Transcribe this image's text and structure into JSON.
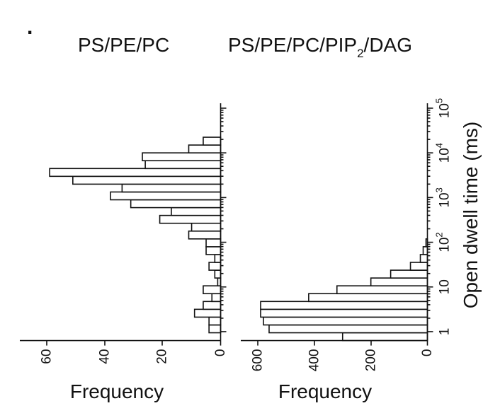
{
  "panel_marker": ".",
  "chart_data": [
    {
      "type": "bar",
      "orientation": "horizontal",
      "title": "PS/PE/PC",
      "xlabel": "Frequency",
      "xlim": [
        70,
        0
      ],
      "xticks": [
        "60",
        "40",
        "20",
        "0"
      ],
      "y_scale": "log",
      "bins_log10_ms": [
        -0.2,
        -0.025,
        0.15,
        0.325,
        0.5,
        0.675,
        0.85,
        1.025,
        1.2,
        1.375,
        1.55,
        1.725,
        1.9,
        2.075,
        2.25,
        2.425,
        2.6,
        2.775,
        2.95,
        3.125,
        3.3,
        3.475,
        3.65,
        3.825,
        4.0,
        4.175,
        4.35,
        4.525,
        4.7,
        4.875
      ],
      "values": [
        0,
        4,
        4,
        9,
        6,
        3,
        6,
        1,
        2,
        4,
        2,
        5,
        5,
        11,
        10,
        21,
        17,
        31,
        38,
        34,
        51,
        59,
        26,
        27,
        11,
        6,
        0,
        0,
        0,
        0
      ]
    },
    {
      "type": "bar",
      "orientation": "horizontal",
      "title": "PS/PE/PC/PIP₂/DAG",
      "xlabel": "Frequency",
      "xlim": [
        700,
        0
      ],
      "xticks": [
        "600",
        "400",
        "200",
        "0"
      ],
      "ylabel": "Open dwell time (ms)",
      "y_scale": "log",
      "ylim_ms": [
        0.5,
        100000
      ],
      "yticks": [
        {
          "base": "1",
          "exp": ""
        },
        {
          "base": "10",
          "exp": ""
        },
        {
          "base": "10",
          "exp": "2"
        },
        {
          "base": "10",
          "exp": "3"
        },
        {
          "base": "10",
          "exp": "4"
        },
        {
          "base": "10",
          "exp": "5"
        }
      ],
      "bins_log10_ms": [
        -0.2,
        -0.025,
        0.15,
        0.325,
        0.5,
        0.675,
        0.85,
        1.025,
        1.2,
        1.375,
        1.55,
        1.725,
        1.9,
        2.075
      ],
      "values": [
        300,
        560,
        580,
        590,
        590,
        420,
        320,
        200,
        130,
        60,
        25,
        15,
        5,
        0
      ]
    }
  ]
}
